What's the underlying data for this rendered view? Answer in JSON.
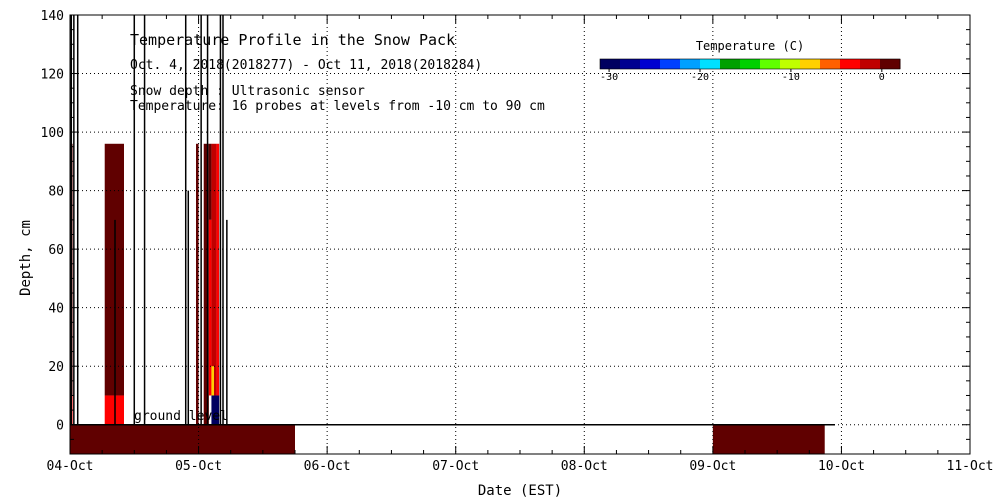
{
  "chart_data": {
    "type": "heatmap",
    "title": "Temperature Profile in the Snow Pack",
    "subtitle": "Oct. 4, 2018(2018277) - Oct 11, 2018(2018284)",
    "info_lines": [
      "Snow depth : Ultrasonic sensor",
      "Temperature: 16 probes at levels from -10 cm to 90 cm"
    ],
    "xlabel": "Date (EST)",
    "ylabel": "Depth, cm",
    "x_ticks": [
      "04-Oct",
      "05-Oct",
      "06-Oct",
      "07-Oct",
      "08-Oct",
      "09-Oct",
      "10-Oct",
      "11-Oct"
    ],
    "xlim_days": [
      0,
      7
    ],
    "ylim": [
      -10,
      140
    ],
    "y_ticks": [
      0,
      20,
      40,
      60,
      80,
      100,
      120,
      140
    ],
    "grid": true,
    "ground_level_label": "ground level",
    "ground_level_depth": 0,
    "colorbar": {
      "title": "Temperature (C)",
      "range": [
        -31,
        2
      ],
      "tick_values": [
        -30,
        -20,
        -10,
        0
      ],
      "tick_labels": [
        "-30",
        "-20",
        "-10",
        "0"
      ],
      "colors": [
        "#000060",
        "#000090",
        "#0000d0",
        "#0040ff",
        "#00a0ff",
        "#00e0ff",
        "#00a000",
        "#00d000",
        "#60ff00",
        "#c0ff00",
        "#ffd000",
        "#ff6000",
        "#ff0000",
        "#c00000",
        "#600000"
      ]
    },
    "cells": [
      {
        "x0": 0.0,
        "x1": 0.02,
        "y0": 10,
        "y1": 96,
        "color": "#600000"
      },
      {
        "x0": 0.0,
        "x1": 0.02,
        "y0": 0,
        "y1": 10,
        "color": "#ff0000"
      },
      {
        "x0": 0.27,
        "x1": 0.42,
        "y0": 10,
        "y1": 96,
        "color": "#600000"
      },
      {
        "x0": 0.27,
        "x1": 0.42,
        "y0": 0,
        "y1": 10,
        "color": "#ff0000"
      },
      {
        "x0": 0.98,
        "x1": 1.0,
        "y0": 0,
        "y1": 96,
        "color": "#600000"
      },
      {
        "x0": 1.04,
        "x1": 1.08,
        "y0": 0,
        "y1": 96,
        "color": "#600000"
      },
      {
        "x0": 1.08,
        "x1": 1.1,
        "y0": 70,
        "y1": 96,
        "color": "#600000"
      },
      {
        "x0": 1.08,
        "x1": 1.1,
        "y0": 10,
        "y1": 70,
        "color": "#ff0000"
      },
      {
        "x0": 1.1,
        "x1": 1.14,
        "y0": 10,
        "y1": 96,
        "color": "#c00000"
      },
      {
        "x0": 1.14,
        "x1": 1.16,
        "y0": 10,
        "y1": 96,
        "color": "#ff0000"
      },
      {
        "x0": 1.1,
        "x1": 1.16,
        "y0": 0,
        "y1": 10,
        "color": "#000060"
      },
      {
        "x0": 1.1,
        "x1": 1.12,
        "y0": 10,
        "y1": 20,
        "color": "#ffd000"
      },
      {
        "x0": 0.0,
        "x1": 1.75,
        "y0": -10,
        "y1": 0,
        "color": "#600000"
      },
      {
        "x0": 5.0,
        "x1": 5.87,
        "y0": -10,
        "y1": 0,
        "color": "#600000"
      }
    ],
    "snow_depth_spikes": [
      {
        "x": 0.01,
        "y0": 0,
        "y1": 140
      },
      {
        "x": 0.03,
        "y0": 0,
        "y1": 140
      },
      {
        "x": 0.06,
        "y0": 0,
        "y1": 140
      },
      {
        "x": 0.5,
        "y0": 0,
        "y1": 140
      },
      {
        "x": 0.58,
        "y0": 0,
        "y1": 140
      },
      {
        "x": 0.9,
        "y0": 0,
        "y1": 140
      },
      {
        "x": 1.02,
        "y0": 0,
        "y1": 140
      },
      {
        "x": 1.07,
        "y0": 0,
        "y1": 140
      },
      {
        "x": 1.17,
        "y0": 0,
        "y1": 140
      },
      {
        "x": 1.19,
        "y0": 0,
        "y1": 140
      },
      {
        "x": 0.35,
        "y0": 0,
        "y1": 70
      },
      {
        "x": 0.92,
        "y0": 0,
        "y1": 80
      },
      {
        "x": 1.22,
        "y0": 0,
        "y1": 70
      }
    ]
  }
}
